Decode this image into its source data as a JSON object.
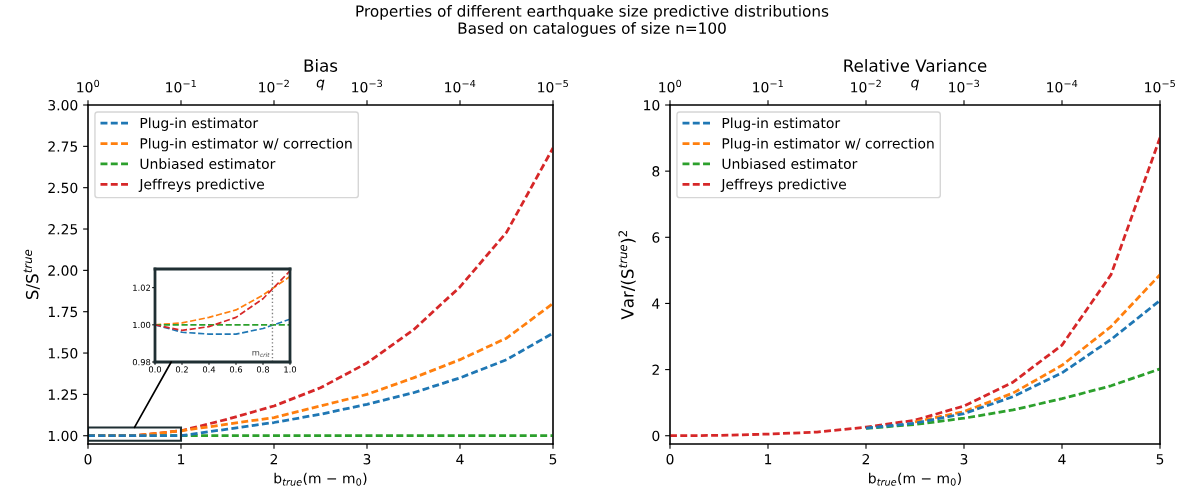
{
  "chart_data": [
    {
      "type": "other",
      "title": "Properties of different earthquake size predictive distributions",
      "subtitle": "Based on catalogues of size n=100"
    },
    {
      "type": "line",
      "title": "Bias",
      "xlabel": "b$_{true}$(m − m$_{0}$)",
      "ylabel": "S/S$^{true}$",
      "x2label": "q",
      "log": "x2",
      "line_style": "dashed",
      "legend": "top left",
      "x": [
        0,
        0.5,
        1,
        1.5,
        2,
        2.5,
        3,
        3.5,
        4,
        4.5,
        5
      ],
      "xlim": [
        0,
        5
      ],
      "xticks": [
        0,
        1,
        2,
        3,
        4,
        5
      ],
      "ylim": [
        0.95,
        3.0
      ],
      "yticks": [
        {
          "value": 1.0,
          "label": "1.00"
        },
        {
          "value": 1.25,
          "label": "1.25"
        },
        {
          "value": 1.5,
          "label": "1.50"
        },
        {
          "value": 1.75,
          "label": "1.75"
        },
        {
          "value": 2.0,
          "label": "2.00"
        },
        {
          "value": 2.25,
          "label": "2.25"
        },
        {
          "value": 2.5,
          "label": "2.50"
        },
        {
          "value": 2.75,
          "label": "2.75"
        },
        {
          "value": 3.0,
          "label": "3.00"
        }
      ],
      "x2lim": [
        1,
        1e-05
      ],
      "x2ticks": [
        {
          "value": 1,
          "label": "10$^{0}$"
        },
        {
          "value": 0.1,
          "label": "10$^{−1}$"
        },
        {
          "value": 0.01,
          "label": "10$^{−2}$"
        },
        {
          "value": 0.001,
          "label": "10$^{−3}$"
        },
        {
          "value": 0.0001,
          "label": "10$^{−4}$"
        },
        {
          "value": 1e-05,
          "label": "10$^{−5}$"
        }
      ],
      "series": [
        {
          "name": "Plug-in estimator",
          "color": "#1f77b4",
          "values": [
            1.0,
            1.0,
            1.0,
            1.04,
            1.08,
            1.13,
            1.19,
            1.26,
            1.35,
            1.46,
            1.62
          ]
        },
        {
          "name": "Plug-in estimator w/ correction",
          "color": "#ff7f0e",
          "values": [
            1.0,
            1.0,
            1.03,
            1.07,
            1.11,
            1.18,
            1.25,
            1.35,
            1.46,
            1.59,
            1.8
          ]
        },
        {
          "name": "Unbiased estimator",
          "color": "#2ca02c",
          "values": [
            1.0,
            1.0,
            1.0,
            1.0,
            1.0,
            1.0,
            1.0,
            1.0,
            1.0,
            1.0,
            1.0
          ]
        },
        {
          "name": "Jeffreys predictive",
          "color": "#d62728",
          "values": [
            1.0,
            1.0,
            1.03,
            1.1,
            1.18,
            1.29,
            1.44,
            1.64,
            1.9,
            2.23,
            2.74
          ]
        }
      ]
    },
    {
      "type": "line",
      "line_style": "dashed",
      "x": [
        0,
        0.2,
        0.4,
        0.6,
        0.8,
        1.0
      ],
      "xlim": [
        0,
        1
      ],
      "xticks": [
        {
          "value": 0,
          "label": "0.0"
        },
        {
          "value": 0.2,
          "label": "0.2"
        },
        {
          "value": 0.4,
          "label": "0.4"
        },
        {
          "value": 0.6,
          "label": "0.6"
        },
        {
          "value": 0.8,
          "label": "0.8"
        },
        {
          "value": 1.0,
          "label": "1.0"
        }
      ],
      "ylim": [
        0.98,
        1.03
      ],
      "yticks": [
        {
          "value": 0.98,
          "label": "0.98"
        },
        {
          "value": 1.0,
          "label": "1.00"
        },
        {
          "value": 1.02,
          "label": "1.02"
        }
      ],
      "ref_lines": [
        {
          "axis": "x",
          "value": 0.87,
          "label": "m$_{crit}$",
          "color": "#808080",
          "line_style": "dotted"
        }
      ],
      "series": [
        {
          "color": "#1f77b4",
          "values": [
            1.0,
            0.996,
            0.995,
            0.995,
            0.998,
            1.003
          ]
        },
        {
          "color": "#ff7f0e",
          "values": [
            1.0,
            1.001,
            1.004,
            1.008,
            1.016,
            1.026
          ]
        },
        {
          "color": "#2ca02c",
          "values": [
            1.0,
            1.0,
            1.0,
            1.0,
            1.0,
            1.0
          ]
        },
        {
          "color": "#d62728",
          "values": [
            1.0,
            0.997,
            0.999,
            1.004,
            1.014,
            1.029
          ]
        }
      ]
    },
    {
      "type": "line",
      "title": "Relative Variance",
      "xlabel": "b$_{true}$(m − m$_{0}$)",
      "ylabel": "Var/(S$^{true}$)$^{2}$",
      "x2label": "q",
      "log": "x2",
      "line_style": "dashed",
      "legend": "top left",
      "x": [
        0,
        0.5,
        1,
        1.5,
        2,
        2.5,
        3,
        3.5,
        4,
        4.5,
        5
      ],
      "xlim": [
        0,
        5
      ],
      "xticks": [
        0,
        1,
        2,
        3,
        4,
        5
      ],
      "ylim": [
        -0.25,
        10
      ],
      "yticks": [
        0,
        2,
        4,
        6,
        8,
        10
      ],
      "x2lim": [
        1,
        1e-05
      ],
      "x2ticks": [
        {
          "value": 1,
          "label": "10$^{0}$"
        },
        {
          "value": 0.1,
          "label": "10$^{−1}$"
        },
        {
          "value": 0.01,
          "label": "10$^{−2}$"
        },
        {
          "value": 0.001,
          "label": "10$^{−3}$"
        },
        {
          "value": 0.0001,
          "label": "10$^{−4}$"
        },
        {
          "value": 1e-05,
          "label": "10$^{−5}$"
        }
      ],
      "series": [
        {
          "name": "Plug-in estimator",
          "color": "#1f77b4",
          "values": [
            null,
            null,
            null,
            null,
            0.23,
            0.38,
            0.67,
            1.18,
            1.9,
            2.91,
            4.09
          ]
        },
        {
          "name": "Plug-in estimator w/ correction",
          "color": "#ff7f0e",
          "values": [
            null,
            null,
            null,
            null,
            null,
            0.42,
            0.73,
            1.29,
            2.13,
            3.3,
            4.87
          ]
        },
        {
          "name": "Unbiased estimator",
          "color": "#2ca02c",
          "values": [
            null,
            null,
            null,
            null,
            0.22,
            0.34,
            0.53,
            0.78,
            1.12,
            1.51,
            2.02
          ]
        },
        {
          "name": "Jeffreys predictive",
          "color": "#d62728",
          "values": [
            0,
            0.01,
            0.05,
            0.11,
            0.26,
            0.47,
            0.9,
            1.62,
            2.74,
            4.87,
            9.01
          ]
        }
      ]
    }
  ]
}
